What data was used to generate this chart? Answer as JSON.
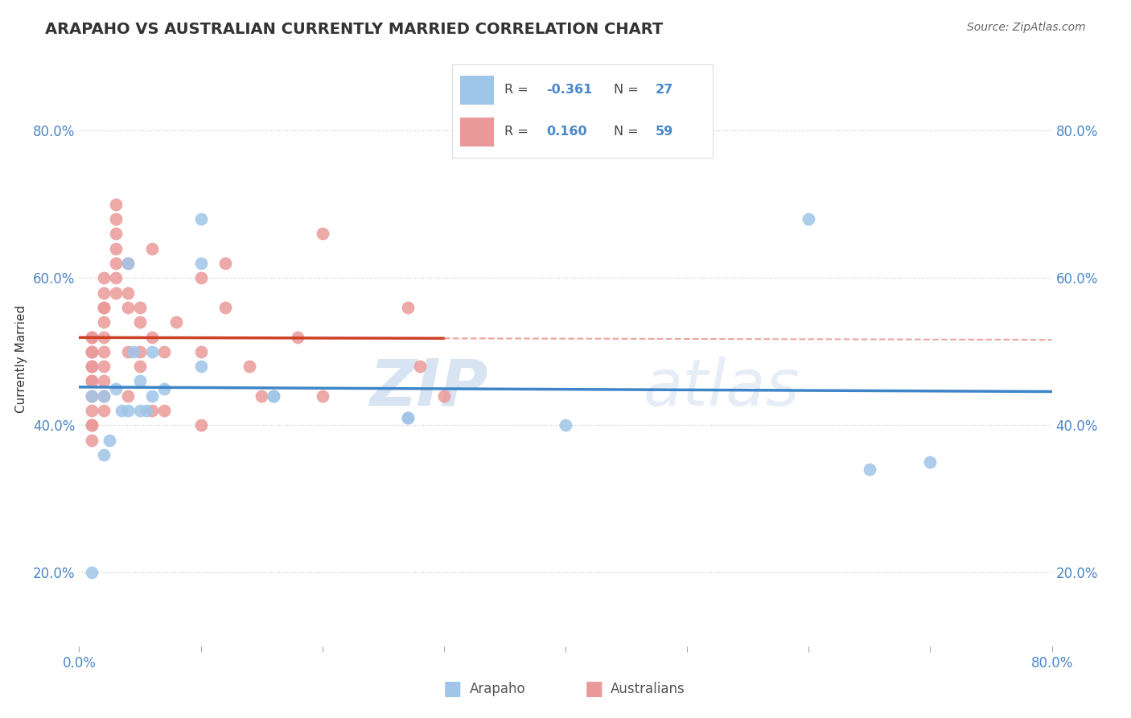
{
  "title": "ARAPAHO VS AUSTRALIAN CURRENTLY MARRIED CORRELATION CHART",
  "source": "Source: ZipAtlas.com",
  "ylabel": "Currently Married",
  "watermark_zip": "ZIP",
  "watermark_atlas": "atlas",
  "legend_blue_r": "-0.361",
  "legend_blue_n": "27",
  "legend_pink_r": "0.160",
  "legend_pink_n": "59",
  "blue_color": "#9fc5e8",
  "pink_color": "#ea9999",
  "blue_line_color": "#3d85c8",
  "pink_line_color": "#cc4125",
  "xlim": [
    0.0,
    0.8
  ],
  "ylim": [
    0.1,
    0.88
  ],
  "yticks": [
    0.2,
    0.4,
    0.6,
    0.8
  ],
  "ytick_labels": [
    "20.0%",
    "40.0%",
    "60.0%",
    "80.0%"
  ],
  "xticks": [
    0.0,
    0.1,
    0.2,
    0.3,
    0.4,
    0.5,
    0.6,
    0.7,
    0.8
  ],
  "grid_color": "#cccccc",
  "blue_scatter_x": [
    0.01,
    0.01,
    0.02,
    0.025,
    0.03,
    0.035,
    0.04,
    0.045,
    0.05,
    0.055,
    0.06,
    0.07,
    0.1,
    0.1,
    0.1,
    0.16,
    0.16,
    0.27,
    0.27,
    0.4,
    0.6,
    0.65,
    0.7,
    0.02,
    0.04,
    0.05,
    0.06
  ],
  "blue_scatter_y": [
    0.2,
    0.44,
    0.44,
    0.38,
    0.45,
    0.42,
    0.62,
    0.5,
    0.46,
    0.42,
    0.5,
    0.45,
    0.62,
    0.48,
    0.68,
    0.44,
    0.44,
    0.41,
    0.41,
    0.4,
    0.68,
    0.34,
    0.35,
    0.36,
    0.42,
    0.42,
    0.44
  ],
  "pink_scatter_x": [
    0.01,
    0.01,
    0.01,
    0.01,
    0.01,
    0.01,
    0.01,
    0.01,
    0.01,
    0.01,
    0.01,
    0.02,
    0.02,
    0.02,
    0.02,
    0.02,
    0.02,
    0.02,
    0.02,
    0.02,
    0.03,
    0.03,
    0.03,
    0.03,
    0.03,
    0.04,
    0.04,
    0.04,
    0.04,
    0.05,
    0.05,
    0.05,
    0.06,
    0.06,
    0.06,
    0.07,
    0.07,
    0.08,
    0.1,
    0.1,
    0.1,
    0.12,
    0.12,
    0.14,
    0.15,
    0.18,
    0.2,
    0.2,
    0.27,
    0.28,
    0.3,
    0.01,
    0.01,
    0.02,
    0.02,
    0.03,
    0.03,
    0.04,
    0.05
  ],
  "pink_scatter_y": [
    0.52,
    0.52,
    0.5,
    0.5,
    0.48,
    0.48,
    0.46,
    0.46,
    0.44,
    0.42,
    0.4,
    0.52,
    0.5,
    0.48,
    0.46,
    0.44,
    0.42,
    0.58,
    0.56,
    0.54,
    0.7,
    0.68,
    0.66,
    0.64,
    0.62,
    0.62,
    0.58,
    0.56,
    0.44,
    0.56,
    0.54,
    0.5,
    0.64,
    0.52,
    0.42,
    0.5,
    0.42,
    0.54,
    0.6,
    0.5,
    0.4,
    0.62,
    0.56,
    0.48,
    0.44,
    0.52,
    0.66,
    0.44,
    0.56,
    0.48,
    0.44,
    0.38,
    0.4,
    0.6,
    0.56,
    0.6,
    0.58,
    0.5,
    0.48
  ]
}
